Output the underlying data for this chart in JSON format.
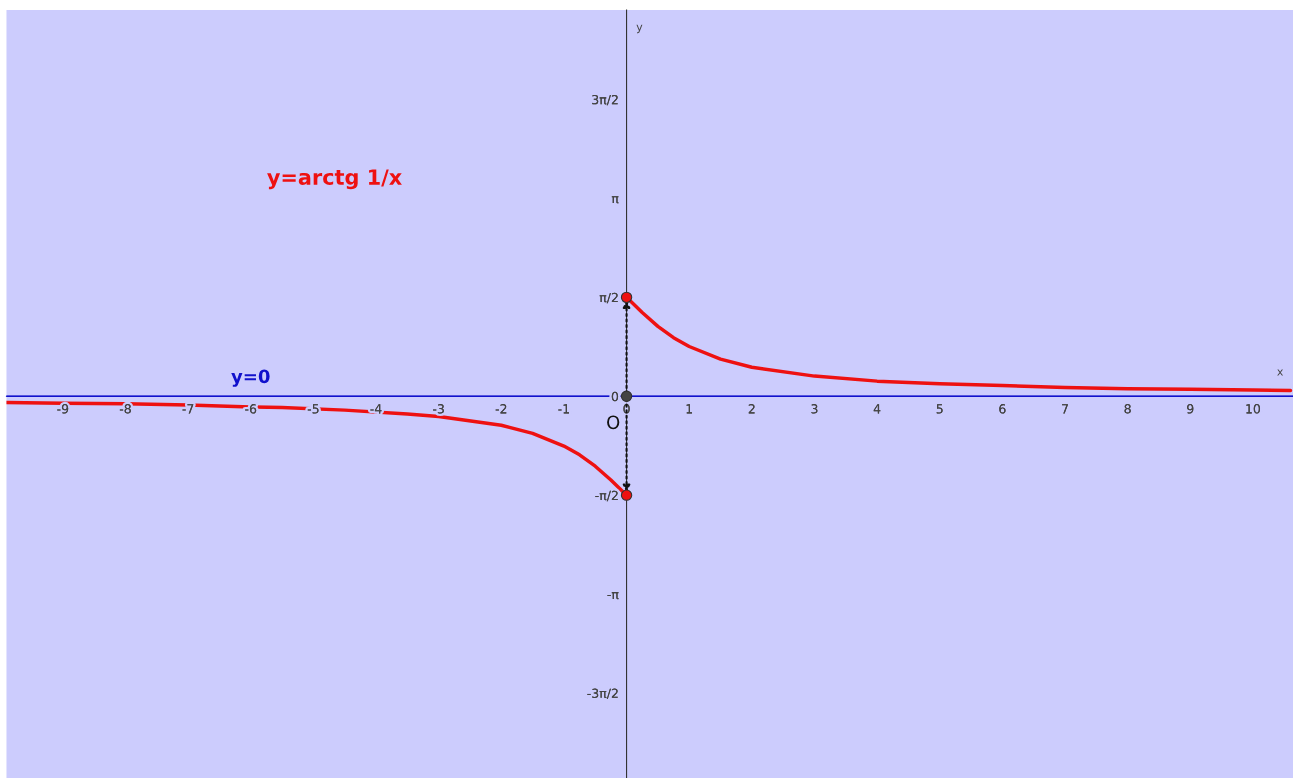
{
  "chart_data": {
    "type": "line",
    "xlabel": "x",
    "ylabel": "y",
    "xlim": [
      -9.9,
      10.64
    ],
    "ylim": [
      -6.06,
      6.13
    ],
    "xticks": [
      -9,
      -8,
      -7,
      -6,
      -5,
      -4,
      -3,
      -2,
      -1,
      0,
      1,
      2,
      3,
      4,
      5,
      6,
      7,
      8,
      9,
      10
    ],
    "yticks": [
      {
        "value": -4.712,
        "label": "-3π/2"
      },
      {
        "value": -3.142,
        "label": "-π"
      },
      {
        "value": -1.571,
        "label": "-π/2"
      },
      {
        "value": 0,
        "label": "0"
      },
      {
        "value": 1.571,
        "label": "π/2"
      },
      {
        "value": 3.142,
        "label": "π"
      },
      {
        "value": 4.712,
        "label": "3π/2"
      }
    ],
    "grid": false,
    "legend": false,
    "series": [
      {
        "color": "#ee1111",
        "x": [
          -9.9,
          -9,
          -8,
          -7,
          -6,
          -5.5,
          -4.5,
          -3.5,
          -3,
          -2,
          -1.5,
          -1,
          -0.75,
          -0.5,
          -0.25,
          0
        ],
        "values": [
          -0.1,
          -0.11,
          -0.12,
          -0.14,
          -0.17,
          -0.18,
          -0.22,
          -0.28,
          -0.32,
          -0.46,
          -0.59,
          -0.79,
          -0.93,
          -1.11,
          -1.33,
          -1.57
        ]
      },
      {
        "color": "#ee1111",
        "x": [
          0,
          0.25,
          0.5,
          0.75,
          1,
          1.5,
          2,
          3,
          4,
          5,
          6,
          7,
          8,
          9,
          10,
          10.6
        ],
        "values": [
          1.57,
          1.33,
          1.11,
          0.93,
          0.79,
          0.59,
          0.46,
          0.32,
          0.24,
          0.2,
          0.17,
          0.14,
          0.12,
          0.11,
          0.1,
          0.09
        ]
      },
      {
        "type": "scatter",
        "marker": "circle",
        "colors": [
          "#ee1111",
          "#ee1111",
          "#444444"
        ],
        "x": [
          0,
          0,
          0
        ],
        "values": [
          1.57,
          -1.57,
          0
        ]
      }
    ],
    "ref_lines": [
      {
        "axis": "y",
        "value": 0,
        "label": "y=0",
        "color": "#1111cc"
      }
    ],
    "annotations": [
      "y=arctg 1/x",
      {
        "text": "O",
        "x": 0,
        "y": 0
      }
    ]
  }
}
